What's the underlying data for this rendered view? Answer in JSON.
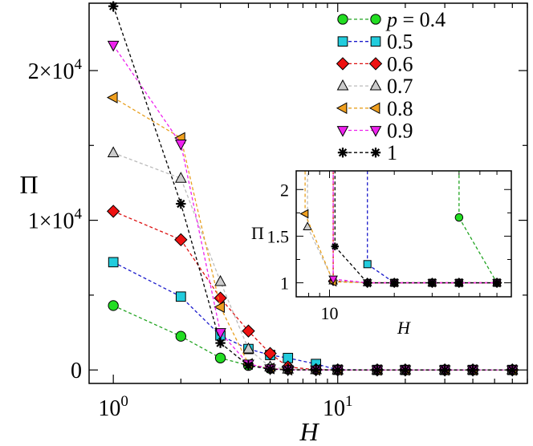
{
  "chart_data": [
    {
      "type": "line",
      "xscale": "log",
      "xlabel": "H",
      "ylabel": "Π",
      "xlim": [
        0.78,
        70
      ],
      "ylim": [
        -900,
        24500
      ],
      "grid": false,
      "legend_position": "top-right",
      "x_tick_labels": [
        {
          "base": "10",
          "exp": "0"
        },
        {
          "base": "10",
          "exp": "1"
        }
      ],
      "y_tick_labels": [
        {
          "value": 0,
          "text": "0"
        },
        {
          "value": 10000,
          "mantissa": "1×10",
          "exp": "4"
        },
        {
          "value": 20000,
          "mantissa": "2×10",
          "exp": "4"
        }
      ],
      "series": [
        {
          "name": "p = 0.4",
          "color": "#22a422",
          "marker": "circle",
          "marker_fill": "#22dd22",
          "x": [
            1,
            2,
            3,
            4,
            5,
            6,
            8,
            10,
            15,
            20,
            30,
            40,
            60
          ],
          "y": [
            4300,
            2250,
            800,
            300,
            100,
            50,
            20,
            10,
            5,
            2,
            1,
            1,
            1
          ]
        },
        {
          "name": "0.5",
          "color": "#1a1acc",
          "marker": "square",
          "marker_fill": "#22ccdd",
          "x": [
            1,
            2,
            3,
            4,
            5,
            6,
            8,
            10,
            15,
            20,
            30,
            40,
            60
          ],
          "y": [
            7200,
            4900,
            2300,
            1400,
            1000,
            800,
            400,
            10,
            1,
            1,
            1,
            1,
            1
          ]
        },
        {
          "name": "0.6",
          "color": "#dd1111",
          "marker": "diamond",
          "marker_fill": "#ee1111",
          "x": [
            1,
            2,
            3,
            4,
            5,
            6,
            8,
            10,
            15,
            20,
            30,
            40,
            60
          ],
          "y": [
            10600,
            8700,
            4800,
            2600,
            1100,
            200,
            20,
            5,
            1,
            1,
            1,
            1,
            1
          ]
        },
        {
          "name": "0.7",
          "color": "#bbbbbb",
          "marker": "triangle-up",
          "marker_fill": "#cccccc",
          "x": [
            1,
            2,
            3,
            4,
            5,
            6,
            8,
            10,
            15,
            20,
            30,
            40,
            60
          ],
          "y": [
            14500,
            12800,
            5900,
            1400,
            200,
            50,
            10,
            2,
            1,
            1,
            1,
            1,
            1
          ]
        },
        {
          "name": "0.8",
          "color": "#e8a020",
          "marker": "triangle-left",
          "marker_fill": "#f0a020",
          "x": [
            1,
            2,
            3,
            4,
            5,
            6,
            8,
            10,
            15,
            20,
            30,
            40,
            60
          ],
          "y": [
            18200,
            15500,
            4200,
            400,
            100,
            20,
            5,
            2,
            1,
            1,
            1,
            1,
            1
          ]
        },
        {
          "name": "0.9",
          "color": "#ee22ee",
          "marker": "triangle-down",
          "marker_fill": "#ee22ee",
          "x": [
            1,
            2,
            3,
            4,
            5,
            6,
            8,
            10,
            15,
            20,
            30,
            40,
            60
          ],
          "y": [
            21700,
            15100,
            2500,
            400,
            80,
            10,
            2,
            1,
            1,
            1,
            1,
            1,
            1
          ]
        },
        {
          "name": "1",
          "color": "#000000",
          "marker": "star",
          "marker_fill": "#000000",
          "x": [
            1,
            2,
            3,
            4,
            5,
            6,
            8,
            10,
            15,
            20,
            30,
            40,
            60
          ],
          "y": [
            24300,
            11100,
            1800,
            300,
            50,
            5,
            2,
            1,
            1,
            1,
            1,
            1,
            1
          ]
        }
      ]
    },
    {
      "type": "line",
      "role": "inset",
      "xscale": "log",
      "xlabel": "H",
      "ylabel": "Π",
      "xlim": [
        7,
        70
      ],
      "ylim": [
        0.85,
        2.2
      ],
      "grid": false,
      "x_tick_labels": [
        "10"
      ],
      "y_tick_labels": [
        "1",
        "1.5",
        "2"
      ],
      "y_ticks": [
        1,
        1.5,
        2
      ],
      "series": [
        {
          "name": "p = 0.4",
          "x": [
            40,
            60
          ],
          "y": [
            1.7,
            1.0
          ],
          "rise_from_x": 40
        },
        {
          "name": "0.5",
          "x": [
            15,
            20,
            30,
            40,
            60
          ],
          "y": [
            1.2,
            1.0,
            1.0,
            1.0,
            1.0
          ],
          "rise_from_x": 15
        },
        {
          "name": "0.6",
          "x": [
            10.4,
            15,
            20,
            30,
            40,
            60
          ],
          "y": [
            1.02,
            1.0,
            1.0,
            1.0,
            1.0,
            1.0
          ],
          "rise_from_x": 10.4
        },
        {
          "name": "0.7",
          "x": [
            7.9,
            10.4,
            15,
            20,
            30,
            40,
            60
          ],
          "y": [
            1.6,
            1.02,
            1.0,
            1.0,
            1.0,
            1.0,
            1.0
          ],
          "rise_from_x": 7.9
        },
        {
          "name": "0.8",
          "x": [
            7.7,
            10.4,
            15,
            20,
            30,
            40,
            60
          ],
          "y": [
            1.74,
            1.01,
            1.0,
            1.0,
            1.0,
            1.0,
            1.0
          ],
          "rise_from_x": 7.7
        },
        {
          "name": "0.9",
          "x": [
            10.4,
            15,
            20,
            30,
            40,
            60
          ],
          "y": [
            1.04,
            1.0,
            1.0,
            1.0,
            1.0,
            1.0
          ],
          "rise_from_x": 10.4
        },
        {
          "name": "1",
          "x": [
            10.6,
            15,
            20,
            30,
            40,
            60
          ],
          "y": [
            1.39,
            1.0,
            1.0,
            1.0,
            1.0,
            1.0
          ],
          "rise_from_x": 10.6
        }
      ]
    }
  ]
}
